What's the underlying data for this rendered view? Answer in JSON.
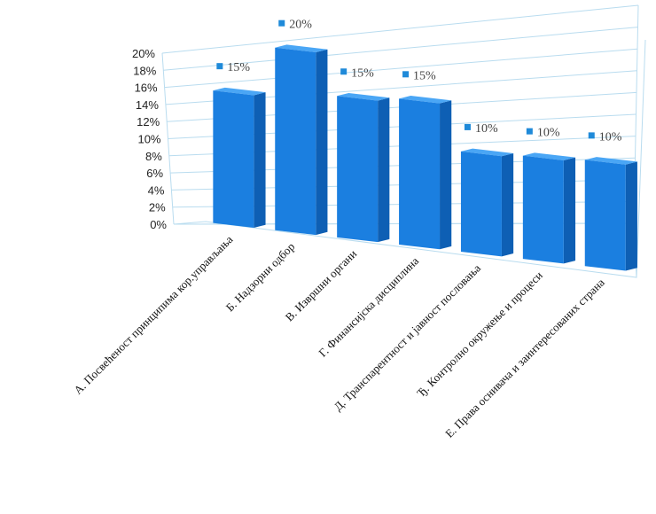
{
  "chart_data": {
    "type": "bar",
    "title": "",
    "xlabel": "",
    "ylabel": "",
    "ylim": [
      0,
      20
    ],
    "y_ticks": [
      "0%",
      "2%",
      "4%",
      "6%",
      "8%",
      "10%",
      "12%",
      "14%",
      "16%",
      "18%",
      "20%"
    ],
    "categories": [
      "А. Посвећеност принципима кор.управљања",
      "Б. Надзорни одбор",
      "В. Извршни органи",
      "Г. Финансијска дисциплина",
      "Д. Транспарентност и јавност пословања",
      "Ђ. Контролно окружење и процеси",
      "Е. Права оснивача и заинтересованих страна"
    ],
    "values": [
      15,
      20,
      15,
      15,
      10,
      10,
      10
    ],
    "data_labels": [
      "15%",
      "20%",
      "15%",
      "15%",
      "10%",
      "10%",
      "10%"
    ],
    "grid": true,
    "legend": "none",
    "colors": {
      "bar_front": "#1b7fe0",
      "bar_side": "#0e5fb4",
      "bar_top": "#4aa6f5",
      "label_marker": "#1f8ad9",
      "grid": "#b9dcef"
    }
  }
}
